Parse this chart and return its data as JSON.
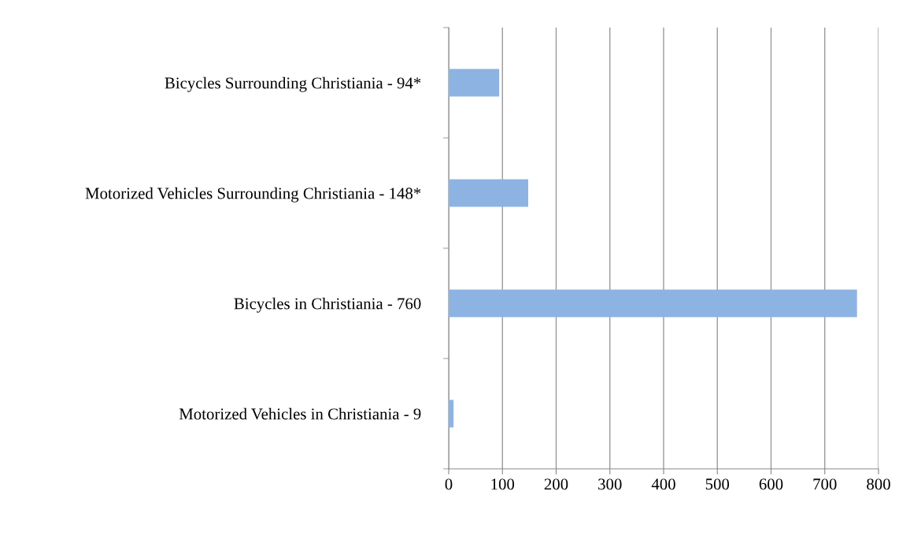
{
  "chart_data": {
    "type": "bar",
    "orientation": "horizontal",
    "categories": [
      "Bicycles Surrounding Christiania - 94*",
      "Motorized Vehicles Surrounding Christiania - 148*",
      "Bicycles in Christiania - 760",
      "Motorized Vehicles in Christiania - 9"
    ],
    "values": [
      94,
      148,
      760,
      9
    ],
    "color": "#8db3e2",
    "xlim": [
      0,
      800
    ],
    "xticks": [
      0,
      100,
      200,
      300,
      400,
      500,
      600,
      700,
      800
    ],
    "grid": "x"
  }
}
